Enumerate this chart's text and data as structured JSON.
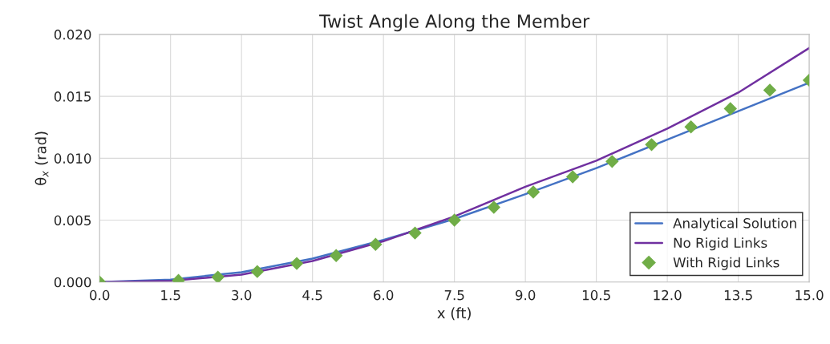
{
  "chart_data": {
    "type": "line",
    "title": "Twist Angle Along the Member",
    "xlabel": "x (ft)",
    "ylabel": "θ$_{x}$ (rad)",
    "xlim": [
      0,
      15
    ],
    "ylim": [
      0,
      0.02
    ],
    "xticks": [
      {
        "value": 0,
        "label": "0.0"
      },
      1.5,
      {
        "value": 3,
        "label": "3.0"
      },
      4.5,
      {
        "value": 6,
        "label": "6.0"
      },
      7.5,
      {
        "value": 9,
        "label": "9.0"
      },
      10.5,
      {
        "value": 12,
        "label": "12.0"
      },
      13.5,
      {
        "value": 15,
        "label": "15.0"
      }
    ],
    "yticks": [
      {
        "value": 0,
        "label": "0.000"
      },
      0.005,
      {
        "value": 0.01,
        "label": "0.010"
      },
      0.015,
      {
        "value": 0.02,
        "label": "0.020"
      }
    ],
    "grid": true,
    "legend": "bottom right",
    "series": [
      {
        "name": "Analytical Solution",
        "color": "#4472c4",
        "marker": "none",
        "x": [
          0,
          1.5,
          3,
          4.5,
          6,
          7.5,
          9,
          10.5,
          12,
          13.5,
          15
        ],
        "values": [
          0,
          0.0002,
          0.0008,
          0.0019,
          0.0034,
          0.0051,
          0.0071,
          0.0092,
          0.0115,
          0.0138,
          0.0161
        ]
      },
      {
        "name": "No Rigid Links",
        "color": "#7030a0",
        "marker": "none",
        "x": [
          0,
          1.5,
          3,
          4.5,
          6,
          7.5,
          9,
          10.5,
          12,
          13.5,
          15
        ],
        "values": [
          0,
          0.0001,
          0.0006,
          0.0017,
          0.0033,
          0.0053,
          0.0077,
          0.0098,
          0.0124,
          0.0153,
          0.0189
        ]
      },
      {
        "name": "With Rigid Links",
        "type": "scatter",
        "color": "#70ad47",
        "marker": "diamond",
        "x": [
          0,
          1.667,
          2.5,
          3.333,
          4.167,
          5,
          5.833,
          6.667,
          7.5,
          8.333,
          9.167,
          10,
          10.833,
          11.667,
          12.5,
          13.333,
          14.167,
          15
        ],
        "values": [
          0,
          0.00013,
          0.0004,
          0.00085,
          0.0015,
          0.00214,
          0.00305,
          0.00396,
          0.005,
          0.00604,
          0.00727,
          0.0085,
          0.00974,
          0.0111,
          0.01253,
          0.014,
          0.0155,
          0.0163
        ]
      }
    ]
  }
}
